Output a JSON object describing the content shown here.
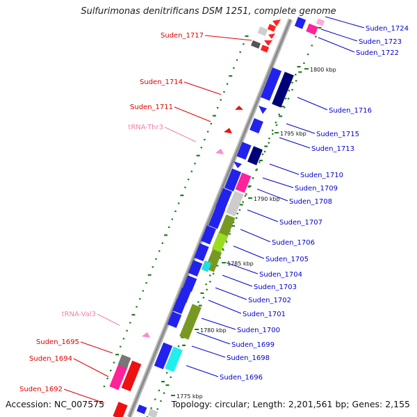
{
  "title": "Sulfurimonas denitrificans DSM 1251, complete genome",
  "footer": {
    "accession": "Accession: NC_007575",
    "summary": "Topology: circular; Length: 2,201,561 bp; Genes: 2,155"
  },
  "colors": {
    "backbone": "#a8a8a8",
    "tick": "#1a7f1a",
    "left_gene_label": "#dd0000",
    "right_gene_label": "#0000cc",
    "trna_label": "#f080b0",
    "kbp_label": "#111111"
  },
  "scale_labels": [
    "1800 kbp",
    "1795 kbp",
    "1790 kbp",
    "1785 kbp",
    "1780 kbp",
    "1775 kbp"
  ],
  "left_labels": [
    {
      "text": "Suden_1717",
      "type": "gene"
    },
    {
      "text": "Suden_1714",
      "type": "gene"
    },
    {
      "text": "Suden_1711",
      "type": "gene"
    },
    {
      "text": "tRNA-Thr3",
      "type": "trna"
    },
    {
      "text": "tRNA-Val3",
      "type": "trna"
    },
    {
      "text": "Suden_1695",
      "type": "gene"
    },
    {
      "text": "Suden_1694",
      "type": "gene"
    },
    {
      "text": "Suden_1692",
      "type": "gene"
    }
  ],
  "right_labels": [
    "Suden_1724",
    "Suden_1723",
    "Suden_1722",
    "Suden_1716",
    "Suden_1715",
    "Suden_1713",
    "Suden_1710",
    "Suden_1709",
    "Suden_1708",
    "Suden_1707",
    "Suden_1706",
    "Suden_1705",
    "Suden_1704",
    "Suden_1703",
    "Suden_1702",
    "Suden_1701",
    "Suden_1700",
    "Suden_1699",
    "Suden_1698",
    "Suden_1696"
  ]
}
